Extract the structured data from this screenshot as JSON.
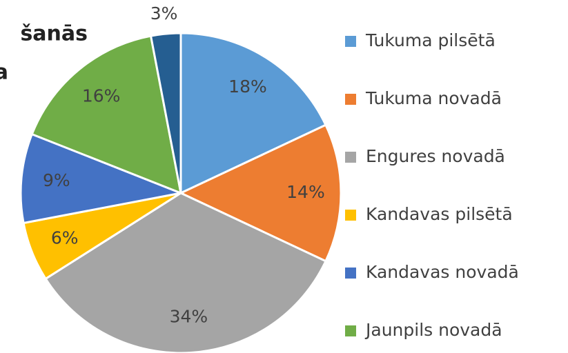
{
  "chart_data": {
    "type": "pie",
    "title_lines": [
      "šanās",
      "a"
    ],
    "categories": [
      "Tukuma pilsētā",
      "Tukuma novadā",
      "Engures novadā",
      "Kandavas pilsētā",
      "Kandavas novadā",
      "Jaunpils novadā",
      null
    ],
    "values": [
      18,
      14,
      34,
      6,
      9,
      16,
      3
    ],
    "value_labels": [
      "18%",
      "14%",
      "34%",
      "6%",
      "9%",
      "16%",
      "3%"
    ],
    "colors": [
      "#5b9bd5",
      "#ed7d31",
      "#a5a5a5",
      "#ffc000",
      "#4472c4",
      "#70ad47",
      "#255e91"
    ]
  }
}
